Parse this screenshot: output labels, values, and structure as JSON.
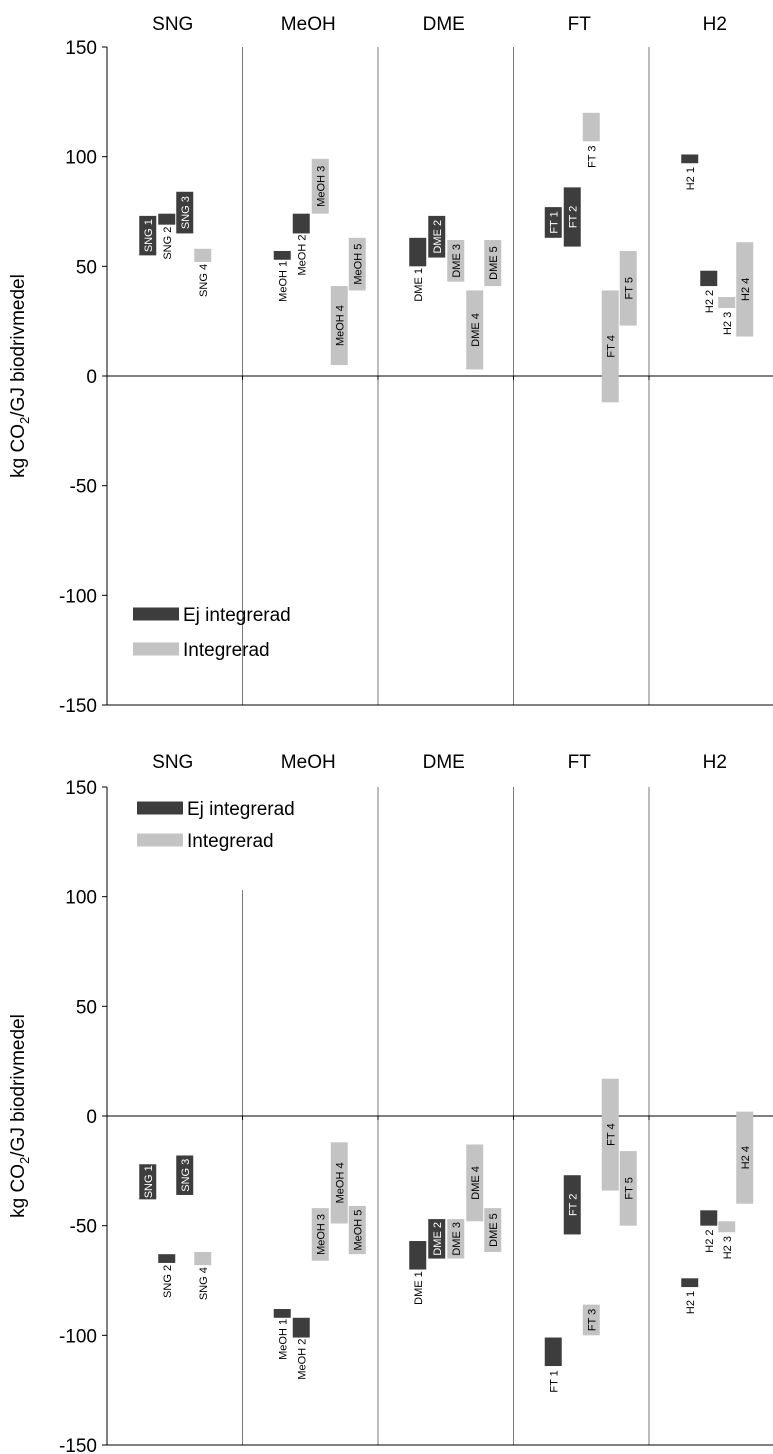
{
  "colors": {
    "ej": "#3d3d3d",
    "int": "#c3c3c3",
    "axis": "#000000",
    "div": "#7a7a7a"
  },
  "legend": {
    "ej": "Ej integrerad",
    "int": "Integrerad"
  },
  "chart_data": [
    {
      "type": "bar",
      "categories": [
        "SNG",
        "MeOH",
        "DME",
        "FT",
        "H2"
      ],
      "ylabel": "kg CO2/GJ biodrivmedel",
      "ylabel_main": "kg CO",
      "ylabel_sub": "2",
      "ylabel_rest": "/GJ biodrivmedel",
      "ylim": [
        -150,
        150
      ],
      "yticks": [
        "150",
        "100",
        "50",
        "0",
        "-50",
        "-100",
        "-150"
      ],
      "legend_placement": "bottom-left",
      "bars": [
        {
          "cat": 0,
          "slot": 0,
          "series": "ej",
          "label": "SNG 1",
          "low": 55,
          "high": 73
        },
        {
          "cat": 0,
          "slot": 1,
          "series": "ej",
          "label": "SNG 2",
          "low": 69,
          "high": 74
        },
        {
          "cat": 0,
          "slot": 2,
          "series": "ej",
          "label": "SNG 3",
          "low": 65,
          "high": 84
        },
        {
          "cat": 0,
          "slot": 3,
          "series": "int",
          "label": "SNG 4",
          "low": 52,
          "high": 58
        },
        {
          "cat": 1,
          "slot": 0,
          "series": "ej",
          "label": "MeOH 1",
          "low": 53,
          "high": 57
        },
        {
          "cat": 1,
          "slot": 1,
          "series": "ej",
          "label": "MeOH 2",
          "low": 65,
          "high": 74
        },
        {
          "cat": 1,
          "slot": 2,
          "series": "int",
          "label": "MeOH 3",
          "low": 74,
          "high": 99
        },
        {
          "cat": 1,
          "slot": 3,
          "series": "int",
          "label": "MeOH 4",
          "low": 5,
          "high": 41
        },
        {
          "cat": 1,
          "slot": 4,
          "series": "int",
          "label": "MeOH 5",
          "low": 39,
          "high": 63
        },
        {
          "cat": 2,
          "slot": 0,
          "series": "ej",
          "label": "DME 1",
          "low": 50,
          "high": 63
        },
        {
          "cat": 2,
          "slot": 1,
          "series": "ej",
          "label": "DME 2",
          "low": 54,
          "high": 73
        },
        {
          "cat": 2,
          "slot": 2,
          "series": "int",
          "label": "DME 3",
          "low": 43,
          "high": 62
        },
        {
          "cat": 2,
          "slot": 3,
          "series": "int",
          "label": "DME 4",
          "low": 3,
          "high": 39
        },
        {
          "cat": 2,
          "slot": 4,
          "series": "int",
          "label": "DME 5",
          "low": 41,
          "high": 62
        },
        {
          "cat": 3,
          "slot": 0,
          "series": "ej",
          "label": "FT 1",
          "low": 63,
          "high": 77
        },
        {
          "cat": 3,
          "slot": 1,
          "series": "ej",
          "label": "FT 2",
          "low": 59,
          "high": 86
        },
        {
          "cat": 3,
          "slot": 2,
          "series": "int",
          "label": "FT 3",
          "low": 107,
          "high": 120
        },
        {
          "cat": 3,
          "slot": 3,
          "series": "int",
          "label": "FT 4",
          "low": -12,
          "high": 39
        },
        {
          "cat": 3,
          "slot": 4,
          "series": "int",
          "label": "FT 5",
          "low": 23,
          "high": 57
        },
        {
          "cat": 4,
          "slot": 0,
          "series": "ej",
          "label": "H2 1",
          "low": 97,
          "high": 101
        },
        {
          "cat": 4,
          "slot": 1,
          "series": "ej",
          "label": "H2 2",
          "low": 41,
          "high": 48
        },
        {
          "cat": 4,
          "slot": 2,
          "series": "int",
          "label": "H2 3",
          "low": 31,
          "high": 36
        },
        {
          "cat": 4,
          "slot": 3,
          "series": "int",
          "label": "H2 4",
          "low": 18,
          "high": 61
        }
      ]
    },
    {
      "type": "bar",
      "categories": [
        "SNG",
        "MeOH",
        "DME",
        "FT",
        "H2"
      ],
      "ylabel": "kg CO2/GJ biodrivmedel",
      "ylabel_main": "kg CO",
      "ylabel_sub": "2",
      "ylabel_rest": "/GJ biodrivmedel",
      "ylim": [
        -150,
        150
      ],
      "yticks": [
        "150",
        "100",
        "50",
        "0",
        "-50",
        "-100",
        "-150"
      ],
      "legend_placement": "top-left",
      "bars": [
        {
          "cat": 0,
          "slot": 0,
          "series": "ej",
          "label": "SNG 1",
          "low": -38,
          "high": -22
        },
        {
          "cat": 0,
          "slot": 1,
          "series": "ej",
          "label": "SNG 2",
          "low": -67,
          "high": -63
        },
        {
          "cat": 0,
          "slot": 2,
          "series": "ej",
          "label": "SNG 3",
          "low": -36,
          "high": -18
        },
        {
          "cat": 0,
          "slot": 3,
          "series": "int",
          "label": "SNG 4",
          "low": -68,
          "high": -62
        },
        {
          "cat": 1,
          "slot": 0,
          "series": "ej",
          "label": "MeOH 1",
          "low": -92,
          "high": -88
        },
        {
          "cat": 1,
          "slot": 1,
          "series": "ej",
          "label": "MeOH 2",
          "low": -101,
          "high": -92
        },
        {
          "cat": 1,
          "slot": 2,
          "series": "int",
          "label": "MeOH 3",
          "low": -66,
          "high": -42
        },
        {
          "cat": 1,
          "slot": 3,
          "series": "int",
          "label": "MeOH 4",
          "low": -49,
          "high": -12
        },
        {
          "cat": 1,
          "slot": 4,
          "series": "int",
          "label": "MeOH 5",
          "low": -63,
          "high": -41
        },
        {
          "cat": 2,
          "slot": 0,
          "series": "ej",
          "label": "DME 1",
          "low": -70,
          "high": -57
        },
        {
          "cat": 2,
          "slot": 1,
          "series": "ej",
          "label": "DME 2",
          "low": -65,
          "high": -47
        },
        {
          "cat": 2,
          "slot": 2,
          "series": "int",
          "label": "DME 3",
          "low": -65,
          "high": -47
        },
        {
          "cat": 2,
          "slot": 3,
          "series": "int",
          "label": "DME 4",
          "low": -48,
          "high": -13
        },
        {
          "cat": 2,
          "slot": 4,
          "series": "int",
          "label": "DME 5",
          "low": -62,
          "high": -42
        },
        {
          "cat": 3,
          "slot": 0,
          "series": "ej",
          "label": "FT 1",
          "low": -114,
          "high": -101
        },
        {
          "cat": 3,
          "slot": 1,
          "series": "ej",
          "label": "FT 2",
          "low": -54,
          "high": -27
        },
        {
          "cat": 3,
          "slot": 2,
          "series": "int",
          "label": "FT 3",
          "low": -100,
          "high": -86
        },
        {
          "cat": 3,
          "slot": 3,
          "series": "int",
          "label": "FT 4",
          "low": -34,
          "high": 17
        },
        {
          "cat": 3,
          "slot": 4,
          "series": "int",
          "label": "FT 5",
          "low": -50,
          "high": -16
        },
        {
          "cat": 4,
          "slot": 0,
          "series": "ej",
          "label": "H2 1",
          "low": -78,
          "high": -74
        },
        {
          "cat": 4,
          "slot": 1,
          "series": "ej",
          "label": "H2 2",
          "low": -50,
          "high": -43
        },
        {
          "cat": 4,
          "slot": 2,
          "series": "int",
          "label": "H2 3",
          "low": -53,
          "high": -48
        },
        {
          "cat": 4,
          "slot": 3,
          "series": "int",
          "label": "H2 4",
          "low": -40,
          "high": 2
        }
      ]
    }
  ]
}
